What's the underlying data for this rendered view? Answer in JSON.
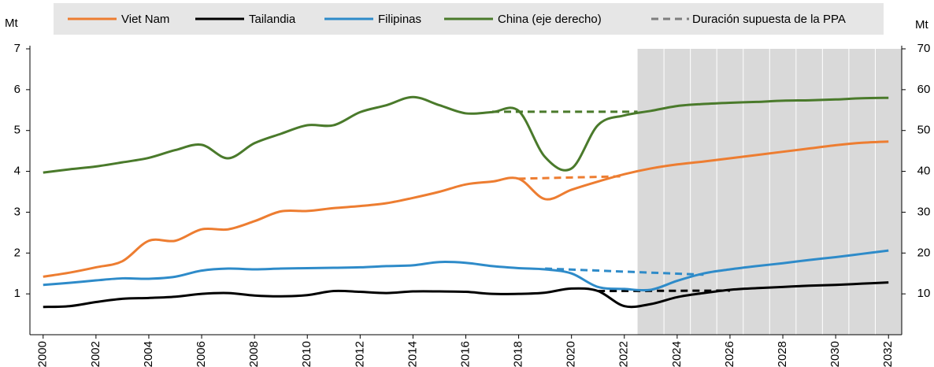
{
  "chart_data": {
    "type": "line",
    "y_unit": "Mt",
    "y2_unit": "Mt",
    "x": [
      2000,
      2001,
      2002,
      2003,
      2004,
      2005,
      2006,
      2007,
      2008,
      2009,
      2010,
      2011,
      2012,
      2013,
      2014,
      2015,
      2016,
      2017,
      2018,
      2019,
      2020,
      2021,
      2022,
      2023,
      2024,
      2025,
      2026,
      2027,
      2028,
      2029,
      2030,
      2031,
      2032
    ],
    "xlim": [
      1999.5,
      2032.5
    ],
    "xticks": [
      2000,
      2002,
      2004,
      2006,
      2008,
      2010,
      2012,
      2014,
      2016,
      2018,
      2020,
      2022,
      2024,
      2026,
      2028,
      2030,
      2032
    ],
    "ylim": [
      0,
      7
    ],
    "yticks": [
      1,
      2,
      3,
      4,
      5,
      6,
      7
    ],
    "y2lim": [
      0,
      70
    ],
    "y2ticks": [
      10,
      20,
      30,
      40,
      50,
      60,
      70
    ],
    "shaded_xrange": [
      2022.5,
      2032.5
    ],
    "shade_color": "#d9d9d9",
    "series": [
      {
        "name": "Viet Nam",
        "color": "#ed7d31",
        "values": [
          1.42,
          1.52,
          1.65,
          1.8,
          2.3,
          2.3,
          2.58,
          2.58,
          2.78,
          3.02,
          3.03,
          3.1,
          3.15,
          3.22,
          3.35,
          3.5,
          3.68,
          3.75,
          3.82,
          3.32,
          3.55,
          3.75,
          3.93,
          4.07,
          4.17,
          4.24,
          4.32,
          4.4,
          4.48,
          4.56,
          4.64,
          4.7,
          4.73
        ],
        "ppa": {
          "x": [
            2018,
            2022
          ],
          "values": [
            3.82,
            3.88
          ]
        }
      },
      {
        "name": "Tailandia",
        "color": "#000000",
        "values": [
          0.68,
          0.7,
          0.8,
          0.88,
          0.9,
          0.93,
          1.0,
          1.02,
          0.96,
          0.94,
          0.97,
          1.07,
          1.05,
          1.02,
          1.06,
          1.06,
          1.05,
          1.0,
          1.0,
          1.03,
          1.13,
          1.07,
          0.7,
          0.75,
          0.92,
          1.02,
          1.1,
          1.14,
          1.17,
          1.2,
          1.22,
          1.25,
          1.28
        ],
        "ppa": {
          "x": [
            2021,
            2026
          ],
          "values": [
            1.07,
            1.08
          ]
        }
      },
      {
        "name": "Filipinas",
        "color": "#2e8bc9",
        "values": [
          1.22,
          1.27,
          1.33,
          1.38,
          1.37,
          1.42,
          1.57,
          1.62,
          1.6,
          1.62,
          1.63,
          1.64,
          1.65,
          1.68,
          1.7,
          1.78,
          1.76,
          1.68,
          1.63,
          1.6,
          1.5,
          1.17,
          1.12,
          1.1,
          1.32,
          1.5,
          1.6,
          1.68,
          1.75,
          1.83,
          1.9,
          1.98,
          2.06
        ],
        "ppa": {
          "x": [
            2019,
            2025
          ],
          "values": [
            1.62,
            1.47
          ]
        }
      },
      {
        "name": "China (eje derecho)",
        "color": "#4a7a2b",
        "axis": "y2",
        "values": [
          39.7,
          40.5,
          41.2,
          42.2,
          43.3,
          45.2,
          46.5,
          43.2,
          46.9,
          49.2,
          51.3,
          51.3,
          54.5,
          56.2,
          58.2,
          56.2,
          54.2,
          54.5,
          54.8,
          43.5,
          40.7,
          51.3,
          53.7,
          54.8,
          56.0,
          56.5,
          56.8,
          57.0,
          57.3,
          57.4,
          57.6,
          57.9,
          58.0
        ],
        "ppa": {
          "x": [
            2017,
            2022.5
          ],
          "values": [
            54.6,
            54.6
          ]
        }
      }
    ],
    "ppa_legend": {
      "name": "Duración supuesta de la PPA",
      "color": "#7f7f7f"
    }
  }
}
